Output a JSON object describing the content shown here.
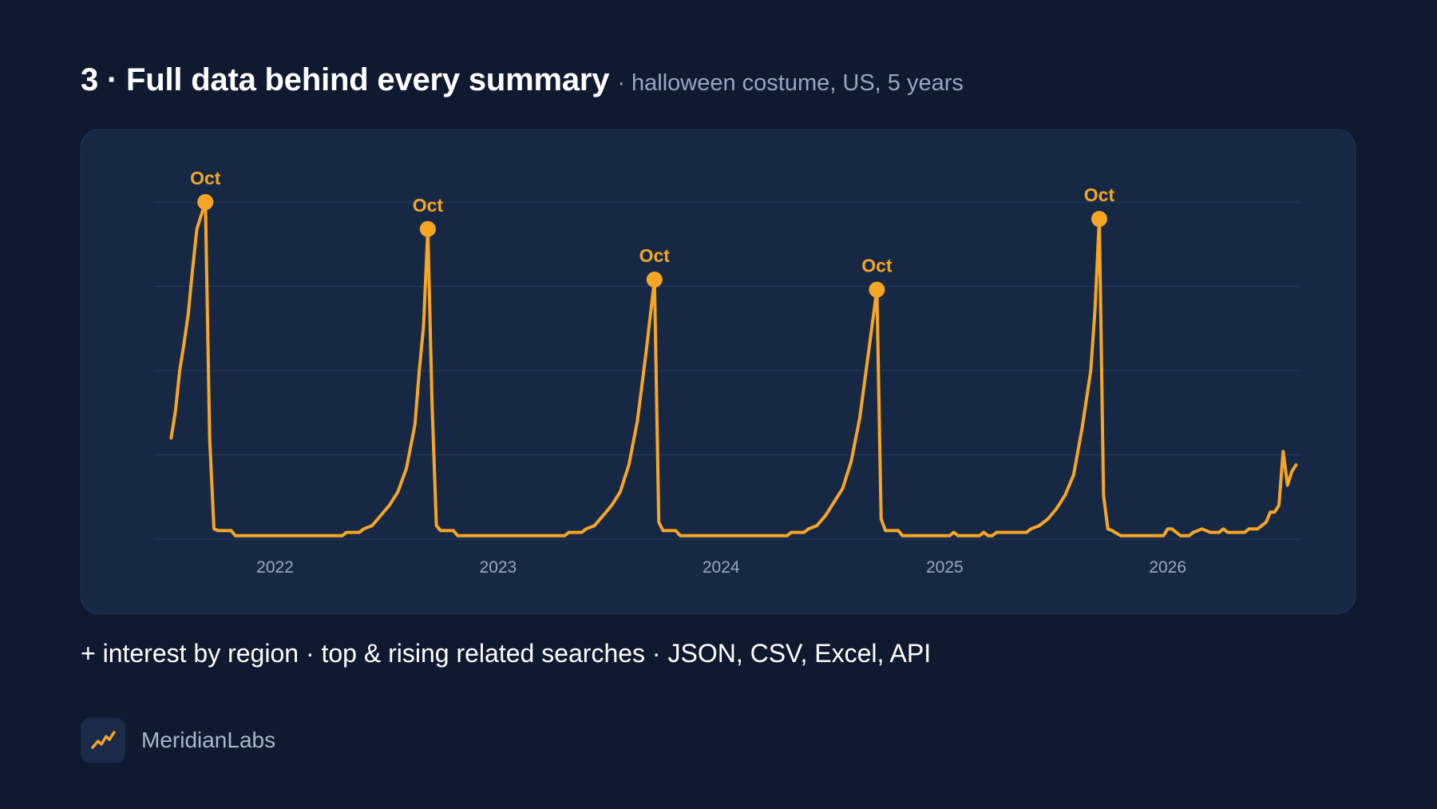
{
  "header": {
    "title": "3 · Full data behind every summary",
    "subtitle": "· halloween costume, US, 5 years"
  },
  "footnote": "+ interest by region · top & rising related searches · JSON, CSV, Excel, API",
  "brand": {
    "name": "MeridianLabs",
    "icon": "trend-up-icon"
  },
  "colors": {
    "line": "#f6a623",
    "background": "#0f1a30",
    "card": "#172845",
    "grid": "#26385c"
  },
  "chart_data": {
    "type": "line",
    "title": "",
    "xlabel": "",
    "ylabel": "",
    "grid": true,
    "ylim": [
      0,
      100
    ],
    "x_ticks": [
      "2022",
      "2023",
      "2024",
      "2025",
      "2026"
    ],
    "x_range": [
      "2021-08",
      "2026-08"
    ],
    "series": [
      {
        "name": "",
        "points": [
          [
            "2021-08-29",
            30
          ],
          [
            "2021-09-05",
            38
          ],
          [
            "2021-09-12",
            50
          ],
          [
            "2021-09-19",
            58
          ],
          [
            "2021-09-26",
            67
          ],
          [
            "2021-10-03",
            80
          ],
          [
            "2021-10-10",
            92
          ],
          [
            "2021-10-24",
            100
          ],
          [
            "2021-10-31",
            30
          ],
          [
            "2021-11-07",
            3
          ],
          [
            "2021-11-14",
            2.5
          ],
          [
            "2021-12-05",
            2.5
          ],
          [
            "2021-12-12",
            1
          ],
          [
            "2022-06-05",
            1
          ],
          [
            "2022-06-12",
            2
          ],
          [
            "2022-07-03",
            2
          ],
          [
            "2022-07-10",
            3
          ],
          [
            "2022-07-24",
            4
          ],
          [
            "2022-08-07",
            7
          ],
          [
            "2022-08-21",
            10
          ],
          [
            "2022-09-04",
            14
          ],
          [
            "2022-09-18",
            21
          ],
          [
            "2022-10-02",
            34
          ],
          [
            "2022-10-09",
            50
          ],
          [
            "2022-10-16",
            63
          ],
          [
            "2022-10-23",
            92
          ],
          [
            "2022-10-30",
            40
          ],
          [
            "2022-11-06",
            4
          ],
          [
            "2022-11-13",
            2.5
          ],
          [
            "2022-12-04",
            2.5
          ],
          [
            "2022-12-11",
            1
          ],
          [
            "2023-06-04",
            1
          ],
          [
            "2023-06-11",
            2
          ],
          [
            "2023-07-02",
            2
          ],
          [
            "2023-07-09",
            3
          ],
          [
            "2023-07-23",
            4
          ],
          [
            "2023-08-06",
            7
          ],
          [
            "2023-08-20",
            10
          ],
          [
            "2023-09-03",
            14
          ],
          [
            "2023-09-17",
            22
          ],
          [
            "2023-10-01",
            35
          ],
          [
            "2023-10-15",
            55
          ],
          [
            "2023-10-29",
            77
          ],
          [
            "2023-11-05",
            5
          ],
          [
            "2023-11-12",
            2.5
          ],
          [
            "2023-12-03",
            2.5
          ],
          [
            "2023-12-10",
            1
          ],
          [
            "2024-06-02",
            1
          ],
          [
            "2024-06-09",
            2
          ],
          [
            "2024-06-30",
            2
          ],
          [
            "2024-07-07",
            3
          ],
          [
            "2024-07-21",
            4
          ],
          [
            "2024-08-04",
            7
          ],
          [
            "2024-08-18",
            11
          ],
          [
            "2024-09-01",
            15
          ],
          [
            "2024-09-15",
            23
          ],
          [
            "2024-09-29",
            36
          ],
          [
            "2024-10-13",
            55
          ],
          [
            "2024-10-27",
            74
          ],
          [
            "2024-11-03",
            6
          ],
          [
            "2024-11-10",
            2.5
          ],
          [
            "2024-12-01",
            2.5
          ],
          [
            "2024-12-08",
            1
          ],
          [
            "2025-02-23",
            1
          ],
          [
            "2025-03-02",
            2
          ],
          [
            "2025-03-09",
            1
          ],
          [
            "2025-04-13",
            1
          ],
          [
            "2025-04-20",
            2
          ],
          [
            "2025-04-27",
            1
          ],
          [
            "2025-05-04",
            1
          ],
          [
            "2025-05-11",
            2
          ],
          [
            "2025-06-29",
            2
          ],
          [
            "2025-07-06",
            3
          ],
          [
            "2025-07-20",
            4
          ],
          [
            "2025-08-03",
            6
          ],
          [
            "2025-08-17",
            9
          ],
          [
            "2025-08-31",
            13
          ],
          [
            "2025-09-14",
            19
          ],
          [
            "2025-09-28",
            33
          ],
          [
            "2025-10-12",
            50
          ],
          [
            "2025-10-19",
            68
          ],
          [
            "2025-10-26",
            95
          ],
          [
            "2025-11-02",
            13
          ],
          [
            "2025-11-09",
            3
          ],
          [
            "2025-11-16",
            2.5
          ],
          [
            "2025-11-30",
            1
          ],
          [
            "2026-02-08",
            1
          ],
          [
            "2026-02-15",
            3
          ],
          [
            "2026-02-22",
            3
          ],
          [
            "2026-03-08",
            1
          ],
          [
            "2026-03-22",
            1
          ],
          [
            "2026-03-29",
            2
          ],
          [
            "2026-04-12",
            3
          ],
          [
            "2026-04-26",
            2
          ],
          [
            "2026-05-10",
            2
          ],
          [
            "2026-05-17",
            3
          ],
          [
            "2026-05-24",
            2
          ],
          [
            "2026-06-21",
            2
          ],
          [
            "2026-06-28",
            3
          ],
          [
            "2026-07-12",
            3
          ],
          [
            "2026-07-26",
            5
          ],
          [
            "2026-08-02",
            8
          ],
          [
            "2026-08-09",
            8
          ],
          [
            "2026-08-16",
            10
          ],
          [
            "2026-08-23",
            26
          ],
          [
            "2026-08-30",
            16
          ],
          [
            "2026-09-06",
            20
          ],
          [
            "2026-09-13",
            22
          ]
        ]
      }
    ],
    "annotations": [
      {
        "x": "2021-10-24",
        "y": 100,
        "text": "Oct"
      },
      {
        "x": "2022-10-23",
        "y": 92,
        "text": "Oct"
      },
      {
        "x": "2023-10-29",
        "y": 77,
        "text": "Oct"
      },
      {
        "x": "2024-10-27",
        "y": 74,
        "text": "Oct"
      },
      {
        "x": "2025-10-26",
        "y": 95,
        "text": "Oct"
      }
    ]
  }
}
